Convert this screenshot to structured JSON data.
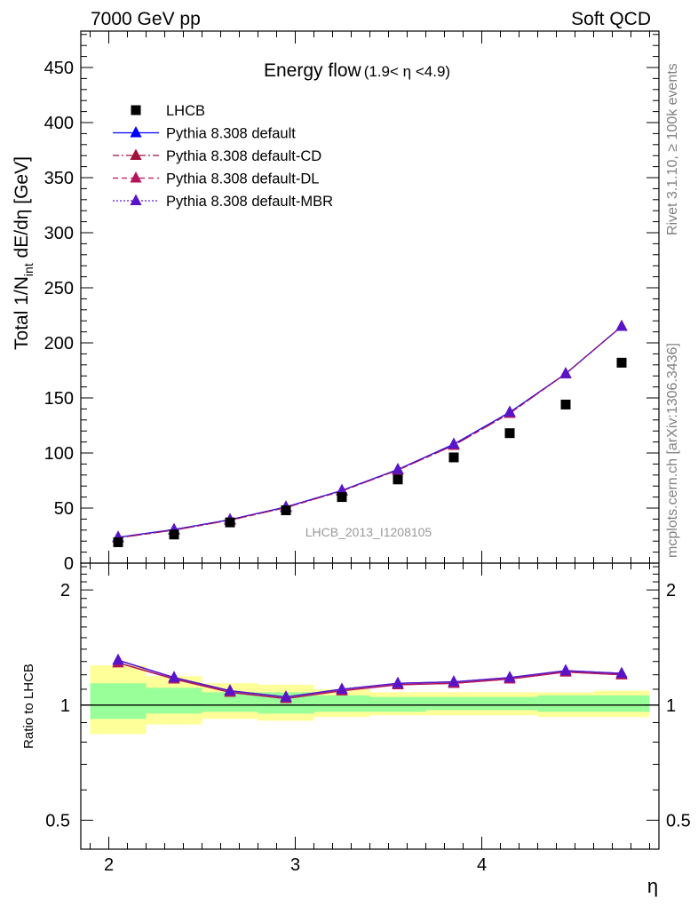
{
  "header": {
    "left": "7000 GeV pp",
    "right": "Soft QCD"
  },
  "side_labels": {
    "rivet": "Rivet 3.1.10, ≥ 100k events",
    "mcplots": "mcplots.cern.ch [arXiv:1306.3436]"
  },
  "chart_data": [
    {
      "type": "scatter",
      "title_main": "Energy flow",
      "title_range": "(1.9< η <4.9)",
      "ylabel_prefix": "Total 1/N",
      "ylabel_sub": "int",
      "ylabel_suffix": " dE/dη [GeV]",
      "analysis_label": "LHCB_2013_I1208105",
      "xlim": [
        1.85,
        4.95
      ],
      "ylim": [
        0,
        480
      ],
      "y_ticks": [
        0,
        50,
        100,
        150,
        200,
        250,
        300,
        350,
        400,
        450
      ],
      "y_tick_labels": [
        "0",
        "50",
        "100",
        "150",
        "200",
        "250",
        "300",
        "350",
        "400",
        "450"
      ],
      "x": [
        2.05,
        2.35,
        2.65,
        2.95,
        3.25,
        3.55,
        3.85,
        4.15,
        4.45,
        4.75
      ],
      "x_edges": [
        1.9,
        2.2,
        2.5,
        2.8,
        3.1,
        3.4,
        3.7,
        4.0,
        4.3,
        4.6,
        4.9
      ],
      "series": [
        {
          "name": "LHCB",
          "marker": "square",
          "color": "#000000",
          "style": "none",
          "values": [
            19,
            26,
            37,
            48,
            60,
            76,
            96,
            118,
            144,
            182
          ]
        },
        {
          "name": "Pythia 8.308 default",
          "marker": "triangle",
          "color": "#0000ff",
          "style": "solid",
          "values": [
            23.5,
            30.5,
            39.5,
            51,
            66,
            85,
            108,
            137,
            172,
            215
          ]
        },
        {
          "name": "Pythia 8.308 default-CD",
          "marker": "triangle",
          "color": "#a0143c",
          "style": "dashdot",
          "values": [
            23,
            30,
            39,
            50.5,
            65.5,
            84.5,
            107,
            136,
            172,
            215
          ]
        },
        {
          "name": "Pythia 8.308 default-DL",
          "marker": "triangle",
          "color": "#b4145a",
          "style": "dashed",
          "values": [
            23,
            30,
            39,
            50.5,
            65.5,
            84.5,
            107,
            136,
            172,
            215
          ]
        },
        {
          "name": "Pythia 8.308 default-MBR",
          "marker": "triangle",
          "color": "#5a14c8",
          "style": "dotted",
          "values": [
            23.5,
            30.5,
            39.5,
            51,
            66,
            85,
            108,
            137,
            172,
            215
          ]
        }
      ]
    },
    {
      "type": "ratio",
      "ylabel": "Ratio to LHCB",
      "xlabel": "η",
      "yscale": "log",
      "ylim": [
        0.42,
        2.35
      ],
      "y_ticks_major": [
        0.5,
        1,
        2
      ],
      "y_tick_labels": [
        "0.5",
        "1",
        "2"
      ],
      "x_ticks": [
        2,
        3,
        4
      ],
      "x_tick_labels": [
        "2",
        "3",
        "4"
      ],
      "band_yellow": [
        [
          0.84,
          1.27
        ],
        [
          0.89,
          1.19
        ],
        [
          0.92,
          1.14
        ],
        [
          0.91,
          1.13
        ],
        [
          0.93,
          1.1
        ],
        [
          0.94,
          1.08
        ],
        [
          0.94,
          1.08
        ],
        [
          0.94,
          1.08
        ],
        [
          0.93,
          1.08
        ],
        [
          0.93,
          1.09
        ]
      ],
      "band_green": [
        [
          0.92,
          1.14
        ],
        [
          0.95,
          1.11
        ],
        [
          0.96,
          1.08
        ],
        [
          0.95,
          1.08
        ],
        [
          0.96,
          1.06
        ],
        [
          0.96,
          1.05
        ],
        [
          0.97,
          1.05
        ],
        [
          0.97,
          1.05
        ],
        [
          0.96,
          1.06
        ],
        [
          0.96,
          1.06
        ]
      ],
      "series": [
        {
          "name": "Pythia 8.308 default",
          "color": "#0000ff",
          "values": [
            1.31,
            1.18,
            1.09,
            1.05,
            1.1,
            1.14,
            1.15,
            1.18,
            1.23,
            1.21
          ]
        },
        {
          "name": "Pythia 8.308 default-CD",
          "color": "#a0143c",
          "values": [
            1.29,
            1.17,
            1.08,
            1.04,
            1.09,
            1.13,
            1.14,
            1.17,
            1.22,
            1.2
          ]
        },
        {
          "name": "Pythia 8.308 default-DL",
          "color": "#b4145a",
          "values": [
            1.29,
            1.17,
            1.08,
            1.04,
            1.09,
            1.13,
            1.14,
            1.17,
            1.22,
            1.2
          ]
        },
        {
          "name": "Pythia 8.308 default-MBR",
          "color": "#5a14c8",
          "values": [
            1.31,
            1.18,
            1.09,
            1.05,
            1.1,
            1.14,
            1.15,
            1.18,
            1.23,
            1.21
          ]
        }
      ]
    }
  ]
}
